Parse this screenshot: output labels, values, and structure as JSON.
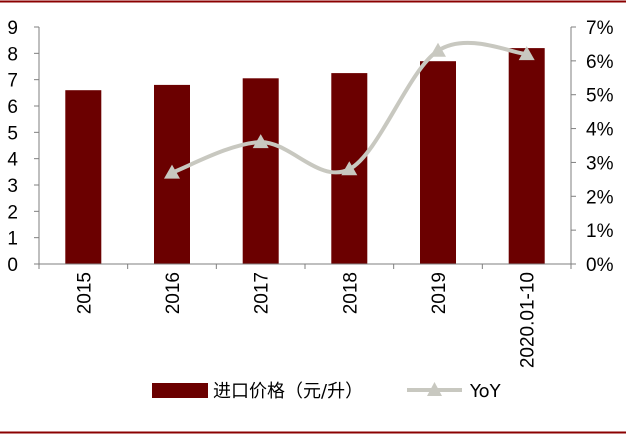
{
  "chart_data": {
    "type": "bar",
    "categories": [
      "2015",
      "2016",
      "2017",
      "2018",
      "2019",
      "2020.01-10"
    ],
    "series": [
      {
        "name": "进口价格（元/升）",
        "type": "bar",
        "axis": "left",
        "color": "#6b0000",
        "values": [
          6.6,
          6.8,
          7.05,
          7.25,
          7.7,
          8.2
        ]
      },
      {
        "name": "YoY",
        "type": "line",
        "axis": "right",
        "color": "#c8c8c0",
        "values": [
          null,
          0.027,
          0.036,
          0.028,
          0.063,
          0.062
        ]
      }
    ],
    "y_left": {
      "min": 0,
      "max": 9,
      "ticks": [
        "0",
        "1",
        "2",
        "3",
        "4",
        "5",
        "6",
        "7",
        "8",
        "9"
      ]
    },
    "y_right": {
      "min": 0,
      "max": 0.07,
      "ticks": [
        "0%",
        "1%",
        "2%",
        "3%",
        "4%",
        "5%",
        "6%",
        "7%"
      ]
    },
    "title": "",
    "grid": false,
    "legend_position": "bottom",
    "colors": {
      "frame": "#8b0000",
      "axis": "#7f7f7f"
    }
  }
}
